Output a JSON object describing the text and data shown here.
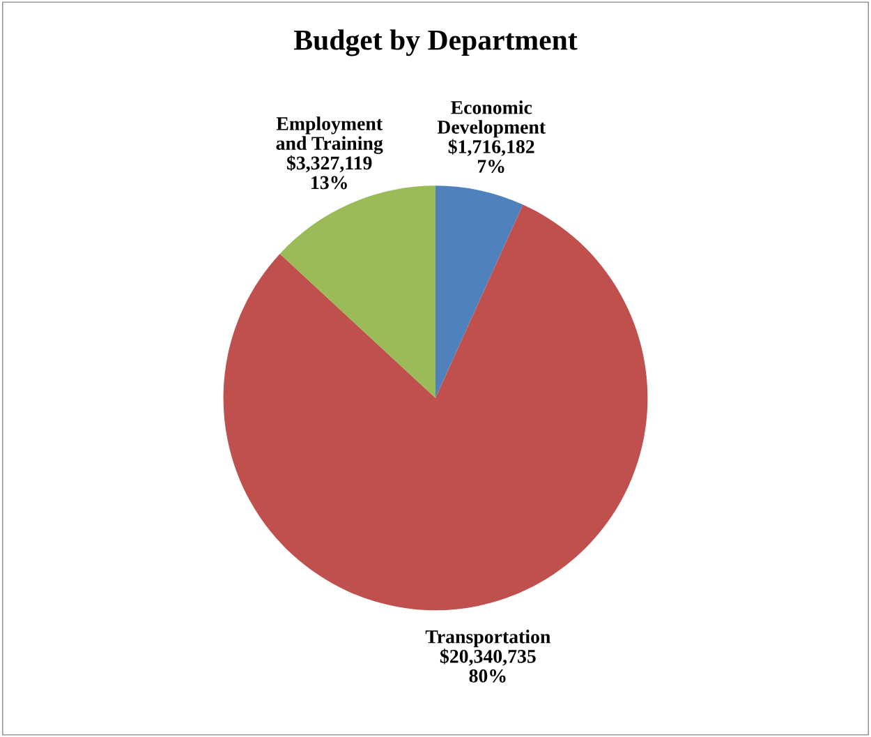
{
  "chart_data": {
    "type": "pie",
    "title": "Budget by Department",
    "categories": [
      "Economic\nDevelopment",
      "Transportation",
      "Employment\nand Training"
    ],
    "values": [
      1716182,
      20340735,
      3327119
    ],
    "value_labels": [
      "$1,716,182\n7%",
      "$20,340,735\n80%",
      "$3,327,119\n13%"
    ],
    "colors": [
      "#4f81bd",
      "#c0504d",
      "#9bbb59"
    ],
    "legend": false
  }
}
